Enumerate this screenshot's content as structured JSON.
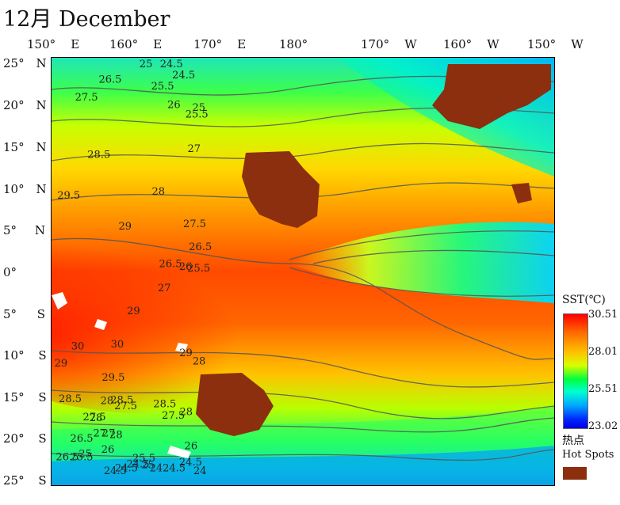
{
  "title": "12月 December",
  "lon_labels": [
    {
      "deg": "150°",
      "hemi": "E"
    },
    {
      "deg": "160°",
      "hemi": "E"
    },
    {
      "deg": "170°",
      "hemi": "E"
    },
    {
      "deg": "180°",
      "hemi": ""
    },
    {
      "deg": "170°",
      "hemi": "W"
    },
    {
      "deg": "160°",
      "hemi": "W"
    },
    {
      "deg": "150°",
      "hemi": "W"
    }
  ],
  "lat_labels": [
    {
      "deg": "25°",
      "hemi": "N"
    },
    {
      "deg": "20°",
      "hemi": "N"
    },
    {
      "deg": "15°",
      "hemi": "N"
    },
    {
      "deg": "10°",
      "hemi": "N"
    },
    {
      "deg": "5°",
      "hemi": "N"
    },
    {
      "deg": "0°",
      "hemi": ""
    },
    {
      "deg": "5°",
      "hemi": "S"
    },
    {
      "deg": "10°",
      "hemi": "S"
    },
    {
      "deg": "15°",
      "hemi": "S"
    },
    {
      "deg": "20°",
      "hemi": "S"
    },
    {
      "deg": "25°",
      "hemi": "S"
    }
  ],
  "legend": {
    "title": "SST(℃)",
    "ticks": [
      "30.51",
      "28.01",
      "25.51",
      "23.02"
    ],
    "hotspot_cn": "热点",
    "hotspot_en": "Hot Spots",
    "hotspot_color": "#8b2f0f"
  },
  "contour_labels": [
    {
      "text": "24.5",
      "lon": -164.7,
      "lat": 24.7
    },
    {
      "text": "25",
      "lon": -173.3,
      "lat": 24.3
    },
    {
      "text": "24.5",
      "lon": -159.6,
      "lat": 22.6
    },
    {
      "text": "25.5",
      "lon": -168.4,
      "lat": 21.3
    },
    {
      "text": "26",
      "lon": -161.6,
      "lat": 19.1
    },
    {
      "text": "25.5",
      "lon": -154.1,
      "lat": 18.0
    },
    {
      "text": "25",
      "lon": -151.2,
      "lat": 18.8
    },
    {
      "text": "26.5",
      "lon": 169.7,
      "lat": 22.1
    },
    {
      "text": "27.5",
      "lon": 159.8,
      "lat": 20.0
    },
    {
      "text": "27",
      "lon": -153.2,
      "lat": 14.0
    },
    {
      "text": "28.5",
      "lon": 165.0,
      "lat": 13.3
    },
    {
      "text": "28",
      "lon": -168.1,
      "lat": 9.0
    },
    {
      "text": "29.5",
      "lon": 152.4,
      "lat": 8.5
    },
    {
      "text": "27.5",
      "lon": -155.0,
      "lat": 5.2
    },
    {
      "text": "29",
      "lon": 178.0,
      "lat": 4.9
    },
    {
      "text": "26.5",
      "lon": -152.6,
      "lat": 2.5
    },
    {
      "text": "26.5",
      "lon": -165.1,
      "lat": 0.5
    },
    {
      "text": "26",
      "lon": -156.7,
      "lat": 0.2
    },
    {
      "text": "25.5",
      "lon": -153.3,
      "lat": 0.0
    },
    {
      "text": "27",
      "lon": -165.6,
      "lat": -2.3
    },
    {
      "text": "29",
      "lon": -178.5,
      "lat": -5.0
    },
    {
      "text": "28",
      "lon": -151.1,
      "lat": -10.9
    },
    {
      "text": "30",
      "lon": 158.2,
      "lat": -9.1
    },
    {
      "text": "30",
      "lon": 174.7,
      "lat": -8.9
    },
    {
      "text": "29",
      "lon": -156.6,
      "lat": -9.9
    },
    {
      "text": "29",
      "lon": 151.2,
      "lat": -11.1
    },
    {
      "text": "29.5",
      "lon": 171.0,
      "lat": -12.8
    },
    {
      "text": "28.5",
      "lon": 153.0,
      "lat": -15.3
    },
    {
      "text": "28",
      "lon": 170.4,
      "lat": -15.5
    },
    {
      "text": "28.5",
      "lon": 174.6,
      "lat": -15.4
    },
    {
      "text": "27.5",
      "lon": 176.2,
      "lat": -16.1
    },
    {
      "text": "28.5",
      "lon": -167.5,
      "lat": -15.9
    },
    {
      "text": "27.5",
      "lon": -163.9,
      "lat": -17.2
    },
    {
      "text": "28",
      "lon": -156.5,
      "lat": -16.8
    },
    {
      "text": "27.5",
      "lon": 163.1,
      "lat": -17.4
    },
    {
      "text": "28",
      "lon": 165.8,
      "lat": -17.5
    },
    {
      "text": "27",
      "lon": 167.4,
      "lat": -19.3
    },
    {
      "text": "27",
      "lon": 171.1,
      "lat": -19.3
    },
    {
      "text": "28",
      "lon": 174.2,
      "lat": -19.5
    },
    {
      "text": "26.5",
      "lon": 157.8,
      "lat": -19.9
    },
    {
      "text": "26",
      "lon": 170.8,
      "lat": -21.2
    },
    {
      "text": "26",
      "lon": -154.5,
      "lat": -20.8
    },
    {
      "text": "26.5",
      "lon": 151.8,
      "lat": -22.1
    },
    {
      "text": "25.5",
      "lon": 157.8,
      "lat": -22.1
    },
    {
      "text": "25",
      "lon": 161.4,
      "lat": -21.7
    },
    {
      "text": "25.5",
      "lon": -176.2,
      "lat": -22.2
    },
    {
      "text": "25",
      "lon": -172.5,
      "lat": -23.0
    },
    {
      "text": "24.5",
      "lon": 171.8,
      "lat": -23.7
    },
    {
      "text": "24.5",
      "lon": 176.5,
      "lat": -23.4
    },
    {
      "text": "24.5",
      "lon": -178.7,
      "lat": -22.9
    },
    {
      "text": "24",
      "lon": -169.0,
      "lat": -23.4
    },
    {
      "text": "24.5",
      "lon": -163.6,
      "lat": -23.4
    },
    {
      "text": "24.5",
      "lon": -156.7,
      "lat": -22.7
    },
    {
      "text": "24",
      "lon": -150.7,
      "lat": -23.7
    }
  ]
}
